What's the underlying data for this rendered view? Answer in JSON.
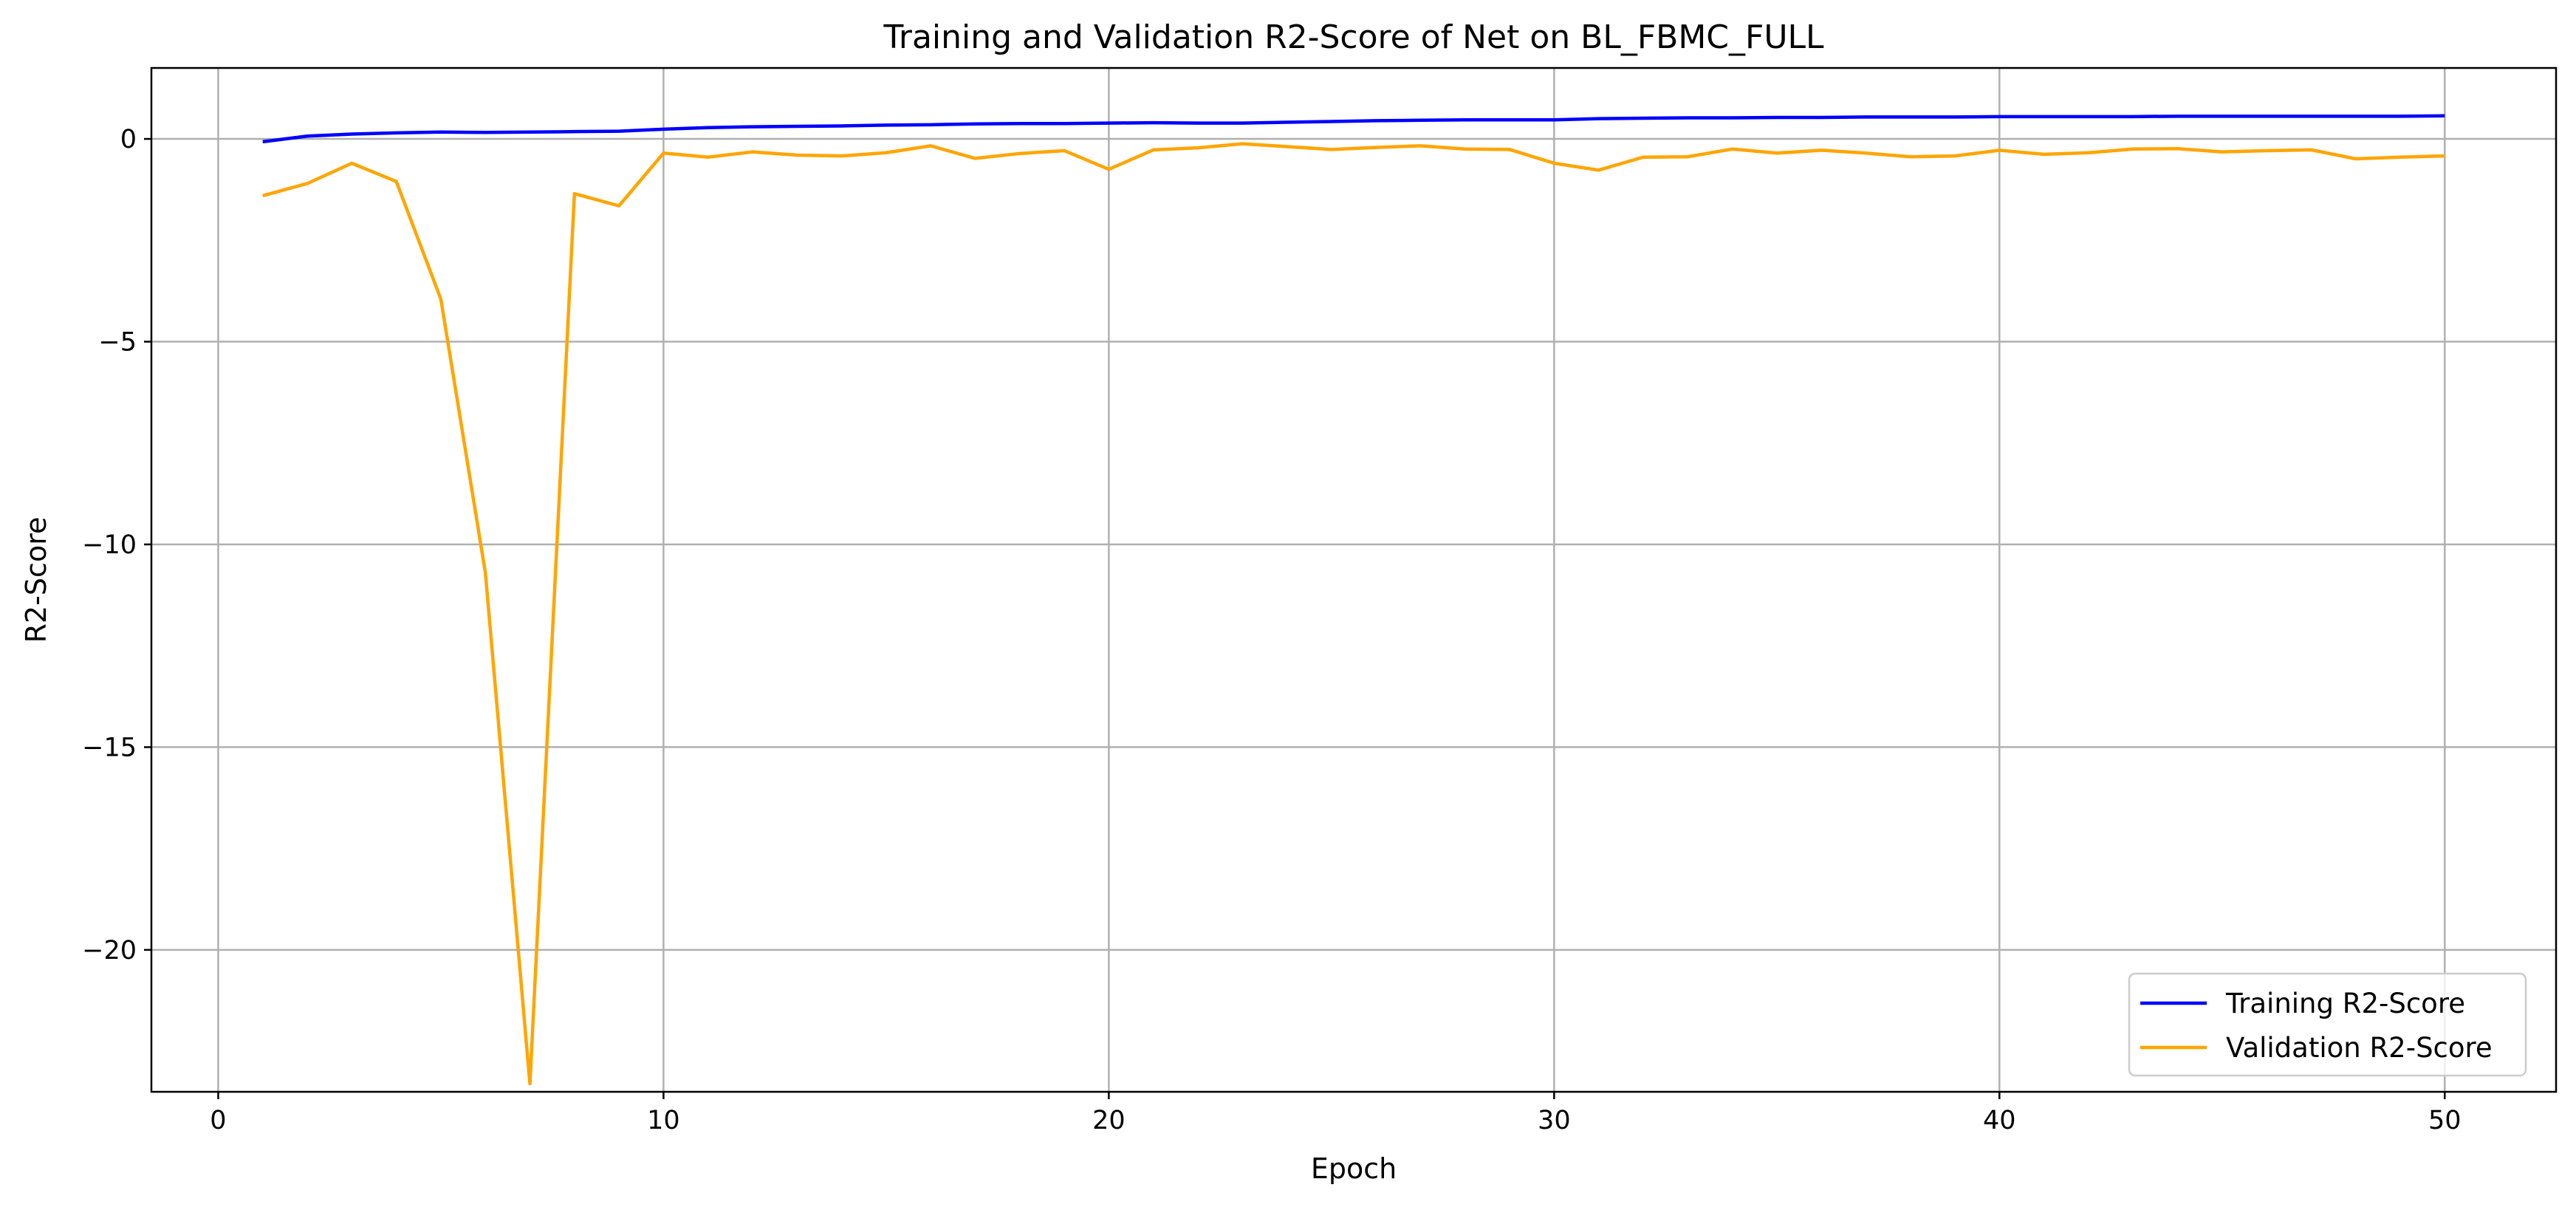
{
  "chart_data": {
    "type": "line",
    "title": "Training and Validation R2-Score of Net on BL_FBMC_FULL",
    "xlabel": "Epoch",
    "ylabel": "R2-Score",
    "xlim": [
      -1.5,
      52.5
    ],
    "ylim": [
      -23.5,
      1.75
    ],
    "xticks": [
      0,
      10,
      20,
      30,
      40,
      50
    ],
    "xtick_labels": [
      "0",
      "10",
      "20",
      "30",
      "40",
      "50"
    ],
    "yticks": [
      0,
      -5,
      -10,
      -15,
      -20
    ],
    "ytick_labels": [
      "0",
      "−5",
      "−10",
      "−15",
      "−20"
    ],
    "grid": true,
    "legend_position": "bottom-right",
    "x": [
      1,
      2,
      3,
      4,
      5,
      6,
      7,
      8,
      9,
      10,
      11,
      12,
      13,
      14,
      15,
      16,
      17,
      18,
      19,
      20,
      21,
      22,
      23,
      24,
      25,
      26,
      27,
      28,
      29,
      30,
      31,
      32,
      33,
      34,
      35,
      36,
      37,
      38,
      39,
      40,
      41,
      42,
      43,
      44,
      45,
      46,
      47,
      48,
      49,
      50
    ],
    "series": [
      {
        "name": "Training R2-Score",
        "color": "#0000ff",
        "values": [
          -0.07,
          0.07,
          0.12,
          0.15,
          0.17,
          0.16,
          0.17,
          0.18,
          0.19,
          0.24,
          0.28,
          0.3,
          0.31,
          0.32,
          0.34,
          0.35,
          0.37,
          0.38,
          0.38,
          0.39,
          0.4,
          0.39,
          0.39,
          0.41,
          0.43,
          0.45,
          0.46,
          0.47,
          0.47,
          0.47,
          0.5,
          0.51,
          0.52,
          0.52,
          0.53,
          0.53,
          0.54,
          0.54,
          0.54,
          0.55,
          0.55,
          0.55,
          0.55,
          0.56,
          0.56,
          0.56,
          0.56,
          0.56,
          0.56,
          0.57
        ]
      },
      {
        "name": "Validation R2-Score",
        "color": "#ffa500",
        "values": [
          -1.4,
          -1.1,
          -0.6,
          -1.05,
          -3.95,
          -10.7,
          -23.3,
          -1.35,
          -1.65,
          -0.35,
          -0.45,
          -0.32,
          -0.4,
          -0.42,
          -0.34,
          -0.17,
          -0.48,
          -0.36,
          -0.29,
          -0.75,
          -0.27,
          -0.22,
          -0.12,
          -0.19,
          -0.26,
          -0.21,
          -0.17,
          -0.25,
          -0.26,
          -0.6,
          -0.77,
          -0.45,
          -0.44,
          -0.25,
          -0.35,
          -0.28,
          -0.35,
          -0.44,
          -0.42,
          -0.28,
          -0.38,
          -0.34,
          -0.25,
          -0.24,
          -0.32,
          -0.29,
          -0.27,
          -0.49,
          -0.45,
          -0.42
        ]
      }
    ]
  }
}
